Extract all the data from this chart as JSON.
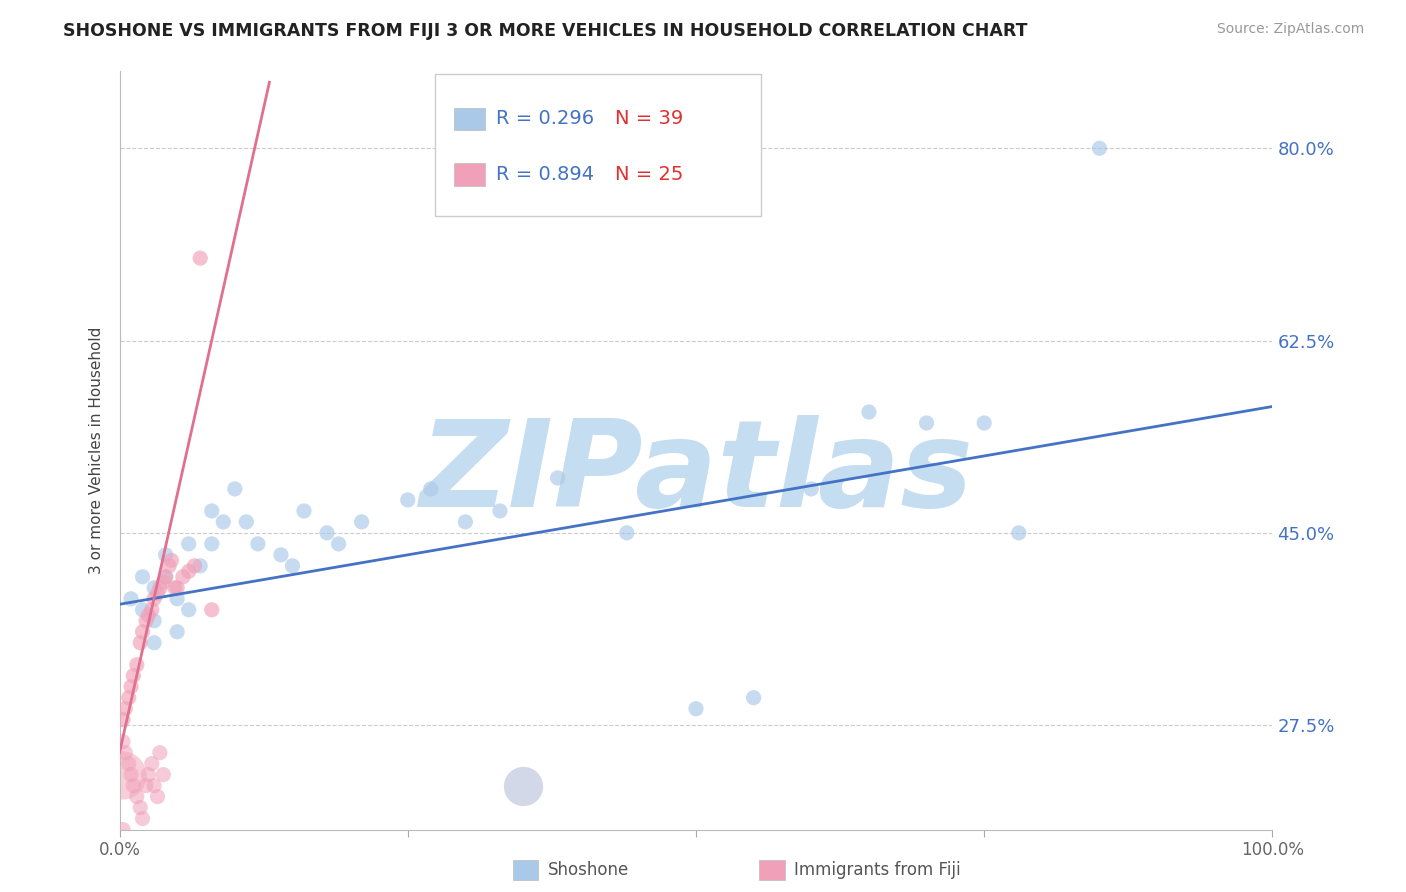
{
  "title": "SHOSHONE VS IMMIGRANTS FROM FIJI 3 OR MORE VEHICLES IN HOUSEHOLD CORRELATION CHART",
  "source_text": "Source: ZipAtlas.com",
  "ylabel": "3 or more Vehicles in Household",
  "xlim": [
    0,
    100
  ],
  "ylim": [
    18,
    87
  ],
  "yticks": [
    27.5,
    45.0,
    62.5,
    80.0
  ],
  "ytick_labels": [
    "27.5%",
    "45.0%",
    "62.5%",
    "80.0%"
  ],
  "xtick_positions": [
    0,
    25,
    50,
    75,
    100
  ],
  "xtick_labels": [
    "0.0%",
    "",
    "",
    "",
    "100.0%"
  ],
  "r_shoshone": 0.296,
  "n_shoshone": 39,
  "r_fiji": 0.894,
  "n_fiji": 25,
  "color_shoshone": "#aac8e8",
  "color_fiji": "#f0a0b8",
  "color_shoshone_line": "#4472c4",
  "color_fiji_line": "#e07090",
  "watermark_text": "ZIPatlas",
  "watermark_color": "#c5ddf0",
  "shoshone_x": [
    1,
    2,
    2,
    3,
    3,
    4,
    5,
    5,
    6,
    7,
    8,
    9,
    10,
    11,
    12,
    14,
    15,
    16,
    18,
    19,
    21,
    25,
    27,
    30,
    33,
    38,
    44,
    50,
    55,
    60,
    65,
    70,
    75,
    78,
    85,
    4,
    6,
    8,
    3
  ],
  "shoshone_y": [
    39,
    41,
    38,
    37,
    40,
    43,
    39,
    36,
    38,
    42,
    44,
    46,
    49,
    46,
    44,
    43,
    42,
    47,
    45,
    44,
    46,
    48,
    49,
    46,
    47,
    50,
    45,
    29,
    30,
    49,
    56,
    55,
    55,
    45,
    80,
    41,
    44,
    47,
    35
  ],
  "shoshone_size": [
    120,
    120,
    120,
    120,
    120,
    120,
    120,
    120,
    120,
    120,
    120,
    120,
    120,
    120,
    120,
    120,
    120,
    120,
    120,
    120,
    120,
    120,
    120,
    120,
    120,
    120,
    120,
    120,
    120,
    120,
    120,
    120,
    120,
    120,
    120,
    120,
    120,
    120,
    120
  ],
  "shoshone_large_x": [
    35
  ],
  "shoshone_large_y": [
    22
  ],
  "shoshone_large_size": [
    800
  ],
  "fiji_x": [
    0.3,
    0.5,
    0.8,
    1.0,
    1.2,
    1.5,
    1.8,
    2.0,
    2.3,
    2.5,
    2.8,
    3.0,
    3.3,
    3.5,
    3.8,
    4.0,
    4.3,
    4.5,
    4.8,
    5.0,
    5.5,
    6.0,
    6.5,
    7.0,
    8.0
  ],
  "fiji_y": [
    28,
    29,
    30,
    31,
    32,
    33,
    35,
    36,
    37,
    37.5,
    38,
    39,
    39.5,
    40,
    40.5,
    41,
    42,
    42.5,
    40,
    40,
    41,
    41.5,
    42,
    70,
    38
  ],
  "fiji_size": [
    120,
    120,
    120,
    120,
    120,
    120,
    120,
    120,
    120,
    120,
    120,
    120,
    120,
    120,
    120,
    120,
    120,
    120,
    120,
    120,
    120,
    120,
    120,
    120,
    120
  ],
  "fiji_small_x": [
    0.3,
    0.5,
    0.8,
    1.0,
    1.2,
    1.5,
    1.8,
    2.0,
    2.3,
    2.5,
    2.8,
    3.0,
    3.3,
    3.5,
    3.8,
    0.3
  ],
  "fiji_small_y": [
    26,
    25,
    24,
    23,
    22,
    21,
    20,
    19,
    22,
    23,
    24,
    22,
    21,
    25,
    23,
    18
  ],
  "fiji_small_size": [
    120,
    120,
    120,
    120,
    120,
    120,
    120,
    120,
    120,
    120,
    120,
    120,
    120,
    120,
    120,
    120
  ],
  "fiji_large_x": [
    0.2
  ],
  "fiji_large_y": [
    23
  ],
  "fiji_large_size": [
    1200
  ],
  "shoshone_trend_x": [
    0,
    100
  ],
  "shoshone_trend_y": [
    38.5,
    56.5
  ],
  "fiji_trend_x": [
    0,
    13
  ],
  "fiji_trend_y": [
    25,
    86
  ]
}
